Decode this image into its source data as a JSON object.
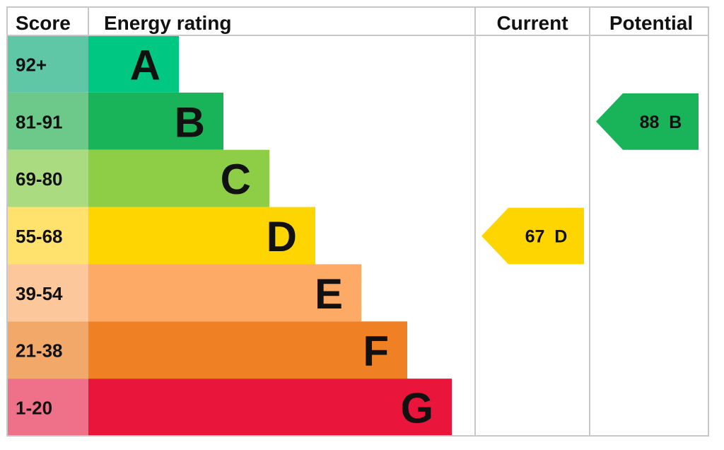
{
  "chart_data": {
    "type": "bar",
    "headers": {
      "score": "Score",
      "rating": "Energy rating",
      "current": "Current",
      "potential": "Potential"
    },
    "bands": [
      {
        "letter": "A",
        "range": "92+",
        "color": "#00c781",
        "score_color": "#5fc7a6"
      },
      {
        "letter": "B",
        "range": "81-91",
        "color": "#19b459",
        "score_color": "#6cc98a"
      },
      {
        "letter": "C",
        "range": "69-80",
        "color": "#8dce46",
        "score_color": "#aadb80"
      },
      {
        "letter": "D",
        "range": "55-68",
        "color": "#ffd500",
        "score_color": "#ffe26e"
      },
      {
        "letter": "E",
        "range": "39-54",
        "color": "#fcaa65",
        "score_color": "#fcc79b"
      },
      {
        "letter": "F",
        "range": "21-38",
        "color": "#ef8023",
        "score_color": "#f2a869"
      },
      {
        "letter": "G",
        "range": "1-20",
        "color": "#e9153b",
        "score_color": "#ef7089"
      }
    ],
    "current": {
      "value": 67,
      "letter": "D",
      "label": "67  D",
      "color": "#ffd500"
    },
    "potential": {
      "value": 88,
      "letter": "B",
      "label": "88  B",
      "color": "#19b459"
    }
  }
}
